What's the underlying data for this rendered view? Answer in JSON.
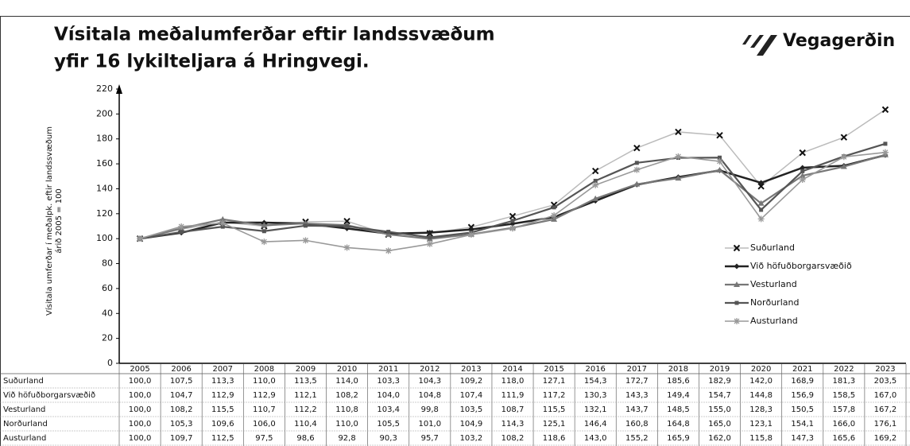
{
  "title": [
    "Vísitala meðalumferðar eftir landssvæðum",
    "yfir 16 lykilteljara á Hringvegi."
  ],
  "logo": "Vegagerðin",
  "chart_data": {
    "type": "line",
    "ylabel": [
      "Vísitala umferðar í meðalpk. eftir landssvæðum",
      "árið 2005 = 100"
    ],
    "categories": [
      "2005",
      "2006",
      "2007",
      "2008",
      "2009",
      "2010",
      "2011",
      "2012",
      "2013",
      "2014",
      "2015",
      "2016",
      "2017",
      "2018",
      "2019",
      "2020",
      "2021",
      "2022",
      "2023"
    ],
    "ylim": [
      0,
      220
    ],
    "yticks": [
      0,
      20,
      40,
      60,
      80,
      100,
      120,
      140,
      160,
      180,
      200,
      220
    ],
    "series": [
      {
        "name": "Suðurland",
        "color": "#bbbbbb",
        "values": [
          100.0,
          107.5,
          113.3,
          110.0,
          113.5,
          114.0,
          103.3,
          104.3,
          109.2,
          118.0,
          127.1,
          154.3,
          172.7,
          185.6,
          182.9,
          142.0,
          168.9,
          181.3,
          203.5
        ],
        "value_labels": [
          "100,0",
          "107,5",
          "113,3",
          "110,0",
          "113,5",
          "114,0",
          "103,3",
          "104,3",
          "109,2",
          "118,0",
          "127,1",
          "154,3",
          "172,7",
          "185,6",
          "182,9",
          "142,0",
          "168,9",
          "181,3",
          "203,5"
        ]
      },
      {
        "name": "Við höfuðborgarsvæðið",
        "color": "#222222",
        "values": [
          100.0,
          104.7,
          112.9,
          112.9,
          112.1,
          108.2,
          104.0,
          104.8,
          107.4,
          111.9,
          117.2,
          130.3,
          143.3,
          149.4,
          154.7,
          144.8,
          156.9,
          158.5,
          167.0
        ],
        "value_labels": [
          "100,0",
          "104,7",
          "112,9",
          "112,9",
          "112,1",
          "108,2",
          "104,0",
          "104,8",
          "107,4",
          "111,9",
          "117,2",
          "130,3",
          "143,3",
          "149,4",
          "154,7",
          "144,8",
          "156,9",
          "158,5",
          "167,0"
        ]
      },
      {
        "name": "Vesturland",
        "color": "#777777",
        "values": [
          100.0,
          108.2,
          115.5,
          110.7,
          112.2,
          110.8,
          103.4,
          99.8,
          103.5,
          108.7,
          115.5,
          132.1,
          143.7,
          148.5,
          155.0,
          128.3,
          150.5,
          157.8,
          167.2
        ],
        "value_labels": [
          "100,0",
          "108,2",
          "115,5",
          "110,7",
          "112,2",
          "110,8",
          "103,4",
          "99,8",
          "103,5",
          "108,7",
          "115,5",
          "132,1",
          "143,7",
          "148,5",
          "155,0",
          "128,3",
          "150,5",
          "157,8",
          "167,2"
        ]
      },
      {
        "name": "Norðurland",
        "color": "#555555",
        "values": [
          100.0,
          105.3,
          109.6,
          106.0,
          110.4,
          110.0,
          105.5,
          101.0,
          104.9,
          114.3,
          125.1,
          146.4,
          160.8,
          164.8,
          165.0,
          123.1,
          154.1,
          166.0,
          176.1
        ],
        "value_labels": [
          "100,0",
          "105,3",
          "109,6",
          "106,0",
          "110,4",
          "110,0",
          "105,5",
          "101,0",
          "104,9",
          "114,3",
          "125,1",
          "146,4",
          "160,8",
          "164,8",
          "165,0",
          "123,1",
          "154,1",
          "166,0",
          "176,1"
        ]
      },
      {
        "name": "Austurland",
        "color": "#999999",
        "values": [
          100.0,
          109.7,
          112.5,
          97.5,
          98.6,
          92.8,
          90.3,
          95.7,
          103.2,
          108.2,
          118.6,
          143.0,
          155.2,
          165.9,
          162.0,
          115.8,
          147.3,
          165.6,
          169.2
        ],
        "value_labels": [
          "100,0",
          "109,7",
          "112,5",
          "97,5",
          "98,6",
          "92,8",
          "90,3",
          "95,7",
          "103,2",
          "108,2",
          "118,6",
          "143,0",
          "155,2",
          "165,9",
          "162,0",
          "115,8",
          "147,3",
          "165,6",
          "169,2"
        ]
      }
    ]
  }
}
